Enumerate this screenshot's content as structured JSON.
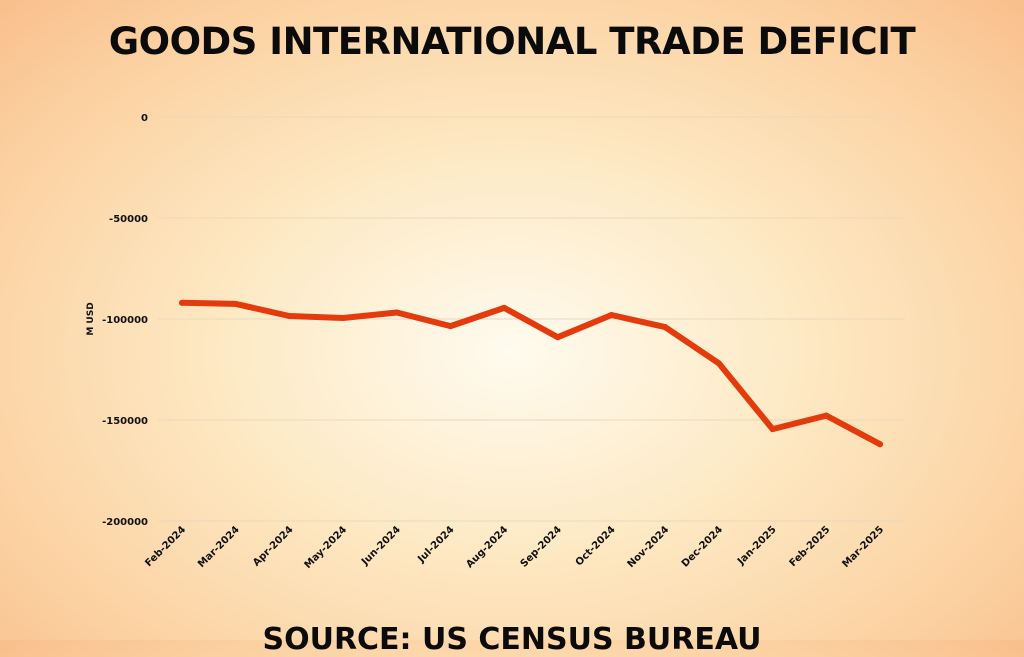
{
  "chart_data": {
    "type": "line",
    "title": "GOODS INTERNATIONAL TRADE DEFICIT",
    "xlabel": "",
    "ylabel": "M USD",
    "categories": [
      "Feb-2024",
      "Mar-2024",
      "Apr-2024",
      "May-2024",
      "Jun-2024",
      "Jul-2024",
      "Aug-2024",
      "Sep-2024",
      "Oct-2024",
      "Nov-2024",
      "Dec-2024",
      "Jan-2025",
      "Feb-2025",
      "Mar-2025"
    ],
    "series": [
      {
        "values": [
          -92000,
          -92500,
          -98500,
          -99500,
          -96800,
          -103500,
          -94500,
          -109000,
          -98000,
          -104000,
          -122000,
          -154500,
          -147800,
          -162000
        ],
        "color": "#e53a0b"
      }
    ],
    "yticks": [
      0,
      -50000,
      -100000,
      -150000,
      -200000
    ],
    "ylim": [
      -200000,
      0
    ],
    "grid": true,
    "legend": "none"
  },
  "source": "SOURCE: US CENSUS BUREAU",
  "colors": {
    "grid": "#ead8bd",
    "text": "#0b0b0b"
  }
}
